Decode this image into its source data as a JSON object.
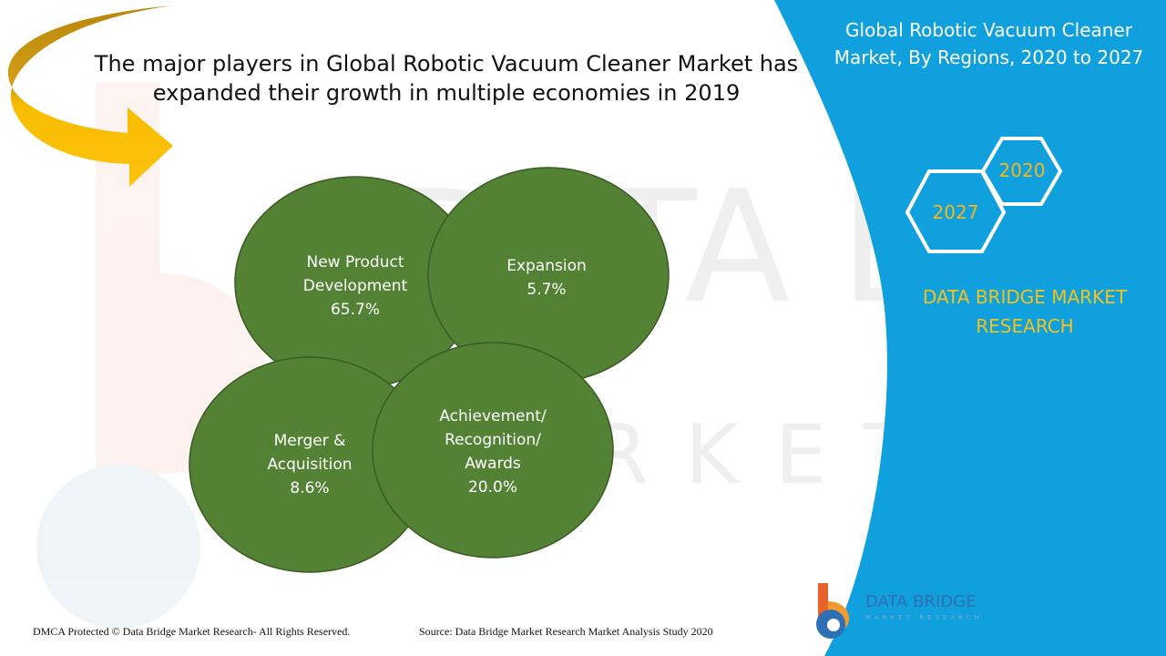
{
  "headline": [
    "The major players in Global Robotic Vacuum Cleaner Market has",
    "expanded their growth in multiple economies in 2019"
  ],
  "strategies": [
    {
      "lines": [
        "New Product",
        "Development"
      ],
      "share": "65.7%"
    },
    {
      "lines": [
        "Expansion"
      ],
      "share": "5.7%"
    },
    {
      "lines": [
        "Merger &",
        "Acquisition"
      ],
      "share": "8.6%"
    },
    {
      "lines": [
        "Achievement/",
        "Recognition/",
        "Awards"
      ],
      "share": "20.0%"
    }
  ],
  "side_panel": {
    "title_lines": [
      "Global Robotic Vacuum Cleaner",
      "Market, By Regions, 2020 to 2027"
    ],
    "hex_start_year": "2020",
    "hex_end_year": "2027",
    "brand_lines": [
      "DATA BRIDGE MARKET",
      "RESEARCH"
    ]
  },
  "logo": {
    "name": "DATA BRIDGE",
    "sub": "MARKET RESEARCH"
  },
  "footer": {
    "copyright": "DMCA Protected © Data Bridge Market Research- All Rights Reserved.",
    "source": "Source: Data Bridge Market Research Market Analysis Study 2020"
  },
  "colors": {
    "circle_fill": "#548235",
    "panel_blue": "#10a0dd",
    "arrow_gold": "#f5b800",
    "brand_yellow": "#f3c21b"
  }
}
